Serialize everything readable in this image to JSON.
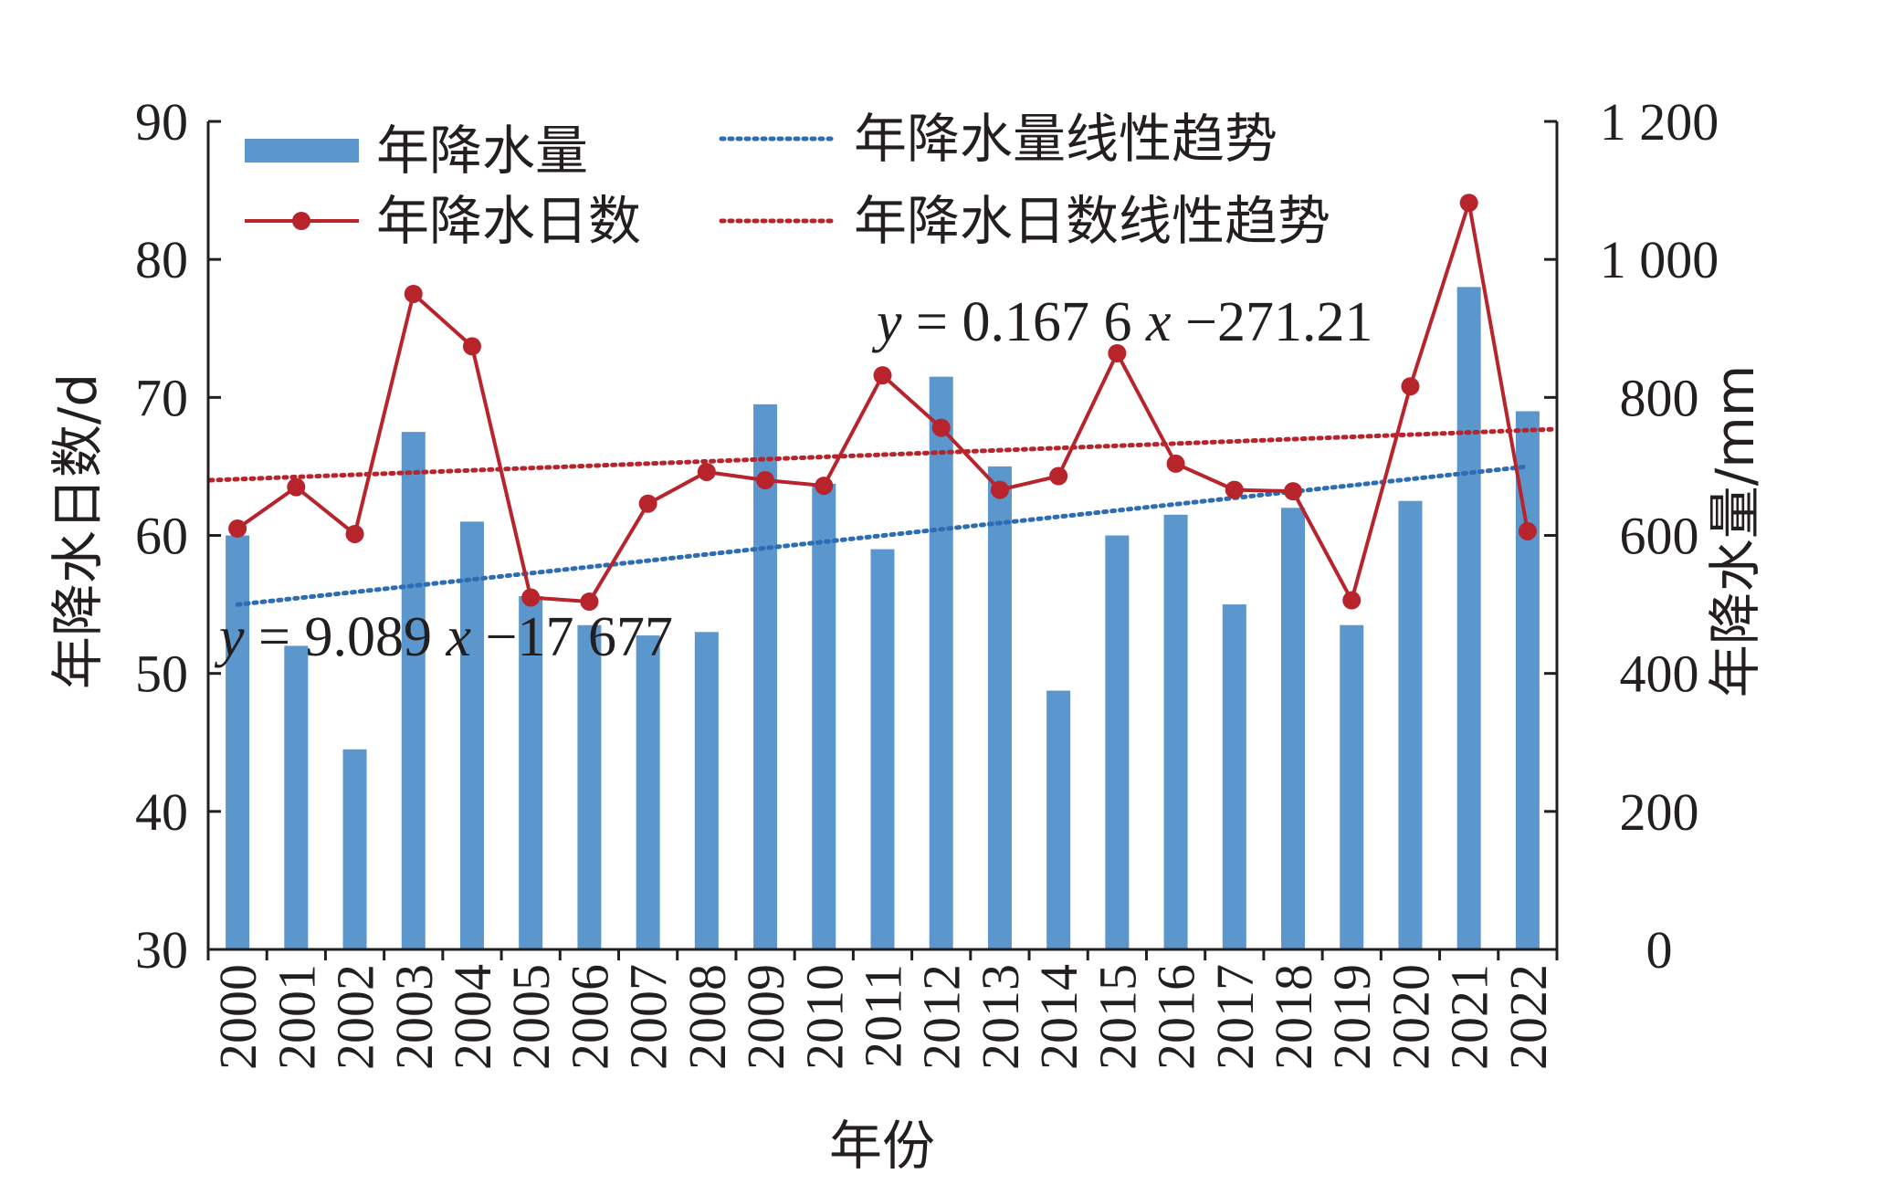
{
  "chart_data": {
    "type": "bar",
    "title": "",
    "xlabel": "年份",
    "ylabel_left": "年降水日数/d",
    "ylabel_right": "年降水量/mm",
    "categories": [
      "2000",
      "2001",
      "2002",
      "2003",
      "2004",
      "2005",
      "2006",
      "2007",
      "2008",
      "2009",
      "2010",
      "2011",
      "2012",
      "2013",
      "2014",
      "2015",
      "2016",
      "2017",
      "2018",
      "2019",
      "2020",
      "2021",
      "2022"
    ],
    "ylim_left": [
      30,
      90
    ],
    "ylim_right": [
      0,
      1200
    ],
    "yticks_left": [
      "30",
      "40",
      "50",
      "60",
      "70",
      "80",
      "90"
    ],
    "yticks_right": [
      "0",
      "200",
      "400",
      "600",
      "800",
      "1 000",
      "1 200"
    ],
    "series": [
      {
        "name": "年降水量",
        "kind": "bar",
        "axis": "right",
        "color": "#5b96cc",
        "values": [
          600,
          440,
          290,
          750,
          620,
          512,
          470,
          455,
          460,
          790,
          675,
          580,
          830,
          700,
          375,
          600,
          630,
          500,
          640,
          470,
          650,
          960,
          780
        ]
      },
      {
        "name": "年降水日数",
        "kind": "line",
        "axis": "left",
        "color": "#b8242b",
        "values": [
          60.5,
          63.5,
          60.1,
          77.5,
          73.7,
          55.5,
          55.2,
          62.3,
          64.6,
          64,
          63.6,
          71.6,
          67.8,
          63.3,
          64.3,
          73.2,
          65.2,
          63.3,
          63.2,
          55.3,
          70.8,
          84.1,
          60.3
        ]
      },
      {
        "name": "年降水量线性趋势",
        "kind": "trend",
        "axis": "right",
        "color": "#2e6db4",
        "start": 499.8,
        "end": 699.8
      },
      {
        "name": "年降水日数线性趋势",
        "kind": "trend",
        "axis": "left",
        "color": "#b8242b",
        "start": 64.0,
        "end": 67.7
      }
    ],
    "annotations": {
      "eq_days": {
        "y_var": "y",
        "mid": " = 0.167 6 ",
        "x_var": "x",
        "tail": " −271.21"
      },
      "eq_precip": {
        "y_var": "y",
        "mid": " = 9.089 ",
        "x_var": "x",
        "tail": " −17 677"
      }
    },
    "legend_position": "top-left",
    "grid": false
  }
}
